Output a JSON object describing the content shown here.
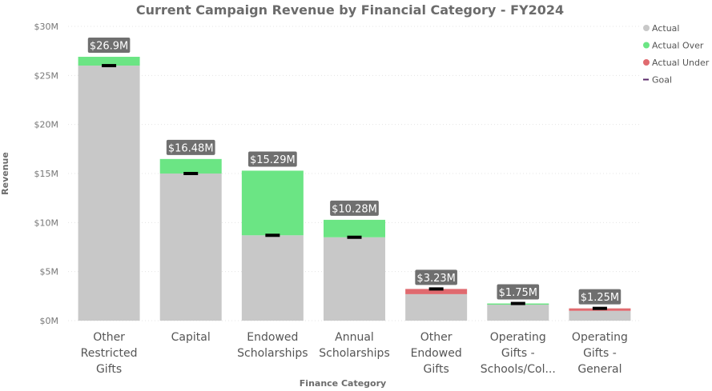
{
  "chart_data": {
    "type": "bar",
    "title": "Current Campaign Revenue by Financial Category - FY2024",
    "xlabel": "Finance Category",
    "ylabel": "Revenue",
    "ylim": [
      0,
      30
    ],
    "yticks": [
      "$0M",
      "$5M",
      "$10M",
      "$15M",
      "$20M",
      "$25M",
      "$30M"
    ],
    "grid": true,
    "legend_position": "top-right",
    "categories": [
      [
        "Other",
        "Restricted",
        "Gifts"
      ],
      [
        "Capital"
      ],
      [
        "Endowed",
        "Scholarships"
      ],
      [
        "Annual",
        "Scholarships"
      ],
      [
        "Other",
        "Endowed",
        "Gifts"
      ],
      [
        "Operating",
        "Gifts -",
        "Schools/Col..."
      ],
      [
        "Operating",
        "Gifts -",
        "General"
      ]
    ],
    "series": [
      {
        "name": "Actual",
        "color": "#c8c8c8",
        "values": [
          26.0,
          15.0,
          8.7,
          8.5,
          2.7,
          1.7,
          1.0
        ]
      },
      {
        "name": "Actual Over",
        "color": "#6be584",
        "values": [
          0.9,
          1.48,
          6.59,
          1.78,
          0,
          0.05,
          0
        ]
      },
      {
        "name": "Actual Under",
        "color": "#e06a6f",
        "values": [
          0,
          0,
          0,
          0,
          0.53,
          0,
          0.25
        ]
      },
      {
        "name": "Goal",
        "color": "#5b2a6b",
        "values": [
          26.0,
          15.0,
          8.7,
          8.5,
          3.23,
          1.75,
          1.25
        ]
      }
    ],
    "data_labels": [
      "$26.9M",
      "$16.48M",
      "$15.29M",
      "$10.28M",
      "$3.23M",
      "$1.75M",
      "$1.25M"
    ],
    "totals": [
      26.9,
      16.48,
      15.29,
      10.28,
      3.23,
      1.75,
      1.25
    ]
  }
}
